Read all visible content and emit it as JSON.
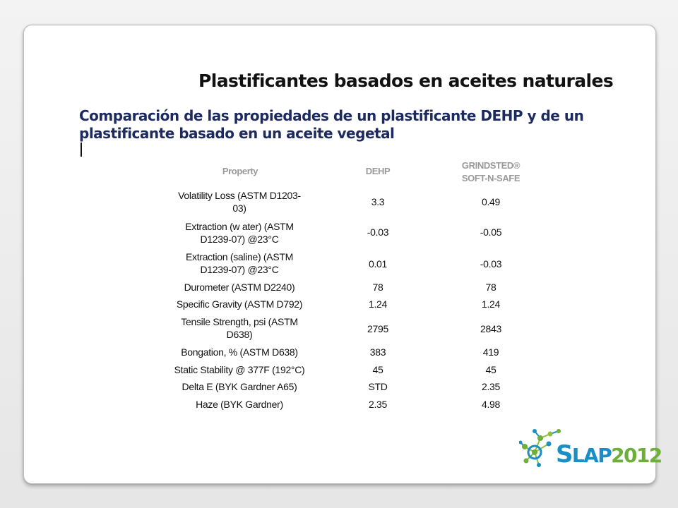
{
  "slide": {
    "title": "Plastificantes basados en aceites naturales",
    "subtitle_line1": "Comparación de las propiedades de un plastificante DEHP y de un",
    "subtitle_line2": "plastificante basado en un aceite vegetal"
  },
  "table": {
    "headers": {
      "property": "Property",
      "dehp": "DEHP",
      "grindsted_line1": "GRINDSTED®",
      "grindsted_line2": "SOFT-N-SAFE"
    },
    "rows": [
      {
        "property_line1": "Volatility Loss (ASTM D1203-",
        "property_line2": "03)",
        "dehp": "3.3",
        "grindsted": "0.49"
      },
      {
        "property_line1": "Extraction (w ater) (ASTM",
        "property_line2": "D1239-07) @23°C",
        "dehp": "-0.03",
        "grindsted": "-0.05"
      },
      {
        "property_line1": "Extraction (saline) (ASTM",
        "property_line2": "D1239-07) @23°C",
        "dehp": "0.01",
        "grindsted": "-0.03"
      },
      {
        "property_line1": "Durometer (ASTM D2240)",
        "property_line2": "",
        "dehp": "78",
        "grindsted": "78"
      },
      {
        "property_line1": "Specific Gravity (ASTM D792)",
        "property_line2": "",
        "dehp": "1.24",
        "grindsted": "1.24"
      },
      {
        "property_line1": "Tensile Strength, psi (ASTM",
        "property_line2": "D638)",
        "dehp": "2795",
        "grindsted": "2843"
      },
      {
        "property_line1": "Bongation, % (ASTM D638)",
        "property_line2": "",
        "dehp": "383",
        "grindsted": "419"
      },
      {
        "property_line1": "Static Stability @ 377F (192°C)",
        "property_line2": "",
        "dehp": "45",
        "grindsted": "45"
      },
      {
        "property_line1": "Delta E (BYK Gardner A65)",
        "property_line2": "",
        "dehp": "STD",
        "grindsted": "2.35"
      },
      {
        "property_line1": "Haze (BYK Gardner)",
        "property_line2": "",
        "dehp": "2.35",
        "grindsted": "4.98"
      }
    ]
  },
  "logo": {
    "s": "S",
    "lap": "LAP",
    "year": "2012"
  },
  "colors": {
    "title": "#111111",
    "subtitle": "#1c2a5f",
    "header": "#9a9a9a",
    "logo_blue": "#1a8fc6",
    "logo_green": "#6cb037"
  }
}
